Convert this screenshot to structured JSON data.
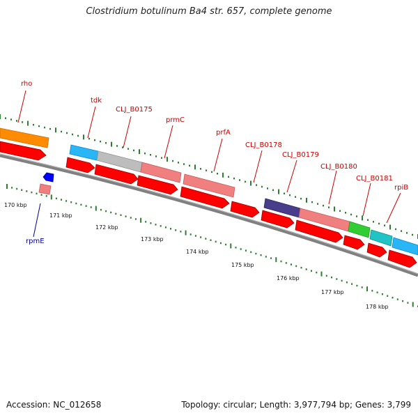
{
  "title": "Clostridium botulinum Ba4 str. 657, complete genome",
  "accession": "Accession: NC_012658",
  "stats": "Topology: circular; Length: 3,977,794 bp; Genes: 3,799",
  "colors": {
    "label": "#cc0000",
    "label_minus": "#000099",
    "backbone": "#808080",
    "cds": "#ff0000",
    "tick": "#2e7d32"
  },
  "kbp_labels": [
    "170 kbp",
    "171 kbp",
    "172 kbp",
    "173 kbp",
    "174 kbp",
    "175 kbp",
    "176 kbp",
    "177 kbp",
    "178 kbp"
  ],
  "gene_labels": [
    {
      "name": "rho",
      "strand": "plus"
    },
    {
      "name": "tdk",
      "strand": "plus"
    },
    {
      "name": "CLJ_B0175",
      "strand": "plus"
    },
    {
      "name": "prmC",
      "strand": "plus"
    },
    {
      "name": "prfA",
      "strand": "plus"
    },
    {
      "name": "CLJ_B0178",
      "strand": "plus"
    },
    {
      "name": "CLJ_B0179",
      "strand": "plus"
    },
    {
      "name": "CLJ_B0180",
      "strand": "plus"
    },
    {
      "name": "CLJ_B0181",
      "strand": "plus"
    },
    {
      "name": "rpiB",
      "strand": "plus"
    },
    {
      "name": "rpmE",
      "strand": "minus"
    }
  ],
  "feature_colors": [
    "#ff8c00",
    "#29b6f6",
    "#bdbdbd",
    "#f08080",
    "#f08080",
    "#483d8b",
    "#f08080",
    "#32cd32",
    "#20c4c4",
    "#29b6f6",
    "#f08080",
    "#0000ff"
  ]
}
